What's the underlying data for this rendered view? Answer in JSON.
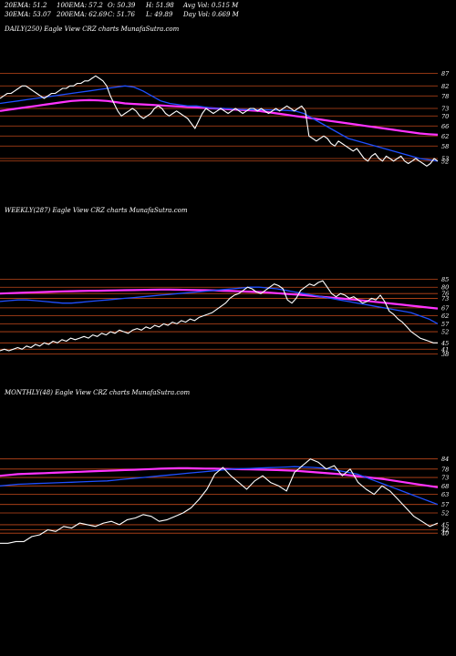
{
  "header": {
    "row1": [
      "20EMA: 51.2",
      "100EMA: 57.2",
      "O: 50.39",
      "H: 51.98",
      "Avg Vol: 0.515 M"
    ],
    "row2": [
      "30EMA: 53.07",
      "200EMA: 62.69",
      "C: 51.76",
      "L: 49.89",
      "Day Vol: 0.669 M"
    ]
  },
  "colors": {
    "price": "#ffffff",
    "ema_fast": "#1f4fff",
    "ema_slow": "#ff33ff",
    "hlines": "#c0481a"
  },
  "chart_data": [
    {
      "type": "line",
      "title": "DAILY(250) Eagle  View  CRZ charts MunafaSutra.com",
      "yticks": [
        87,
        82,
        78,
        73,
        70,
        66,
        62,
        58,
        53,
        52
      ],
      "ylim": [
        49,
        89
      ],
      "series": [
        {
          "values": [
            77,
            78,
            79,
            79,
            80,
            81,
            82,
            82,
            81,
            80,
            79,
            78,
            77,
            78,
            79,
            79,
            80,
            81,
            81,
            82,
            82,
            83,
            83,
            84,
            84,
            85,
            86,
            85,
            84,
            82,
            78,
            75,
            72,
            70,
            71,
            72,
            73,
            72,
            70,
            69,
            70,
            71,
            73,
            74,
            73,
            71,
            70,
            71,
            72,
            71,
            70,
            69,
            67,
            65,
            68,
            71,
            73,
            72,
            71,
            72,
            73,
            72,
            71,
            72,
            73,
            72,
            71,
            72,
            73,
            73,
            72,
            73,
            72,
            71,
            72,
            73,
            72,
            73,
            74,
            73,
            72,
            73,
            74,
            72,
            62,
            61,
            60,
            61,
            62,
            61,
            59,
            58,
            60,
            59,
            58,
            57,
            56,
            57,
            55,
            53,
            52,
            54,
            55,
            53,
            52,
            54,
            53,
            52,
            53,
            54,
            52,
            51,
            52,
            53,
            52,
            51,
            50,
            51,
            53,
            52
          ]
        },
        {
          "values": [
            75,
            75.5,
            76,
            76.5,
            77,
            77.5,
            78,
            78.5,
            79,
            79.5,
            80,
            80.5,
            81,
            81.5,
            82,
            81.5,
            80,
            78,
            76,
            75,
            74.5,
            74,
            74,
            73.5,
            73,
            73,
            72.8,
            72.6,
            72.5,
            72.5,
            72.4,
            72.3,
            72.2,
            72,
            71,
            69,
            67,
            65,
            63,
            61,
            60,
            59,
            58,
            57,
            56,
            55,
            54,
            53,
            52.5,
            52
          ]
        },
        {
          "values": [
            72,
            72.5,
            73,
            73.5,
            74,
            74.5,
            75,
            75.5,
            76,
            76.2,
            76.3,
            76.2,
            76,
            75.5,
            75,
            74.8,
            74.6,
            74.4,
            74.2,
            74,
            73.8,
            73.6,
            73.4,
            73.2,
            73,
            72.8,
            72.6,
            72.4,
            72.2,
            72,
            71.5,
            71,
            70.5,
            70,
            69.5,
            69,
            68.5,
            68,
            67.5,
            67,
            66.5,
            66,
            65.5,
            65,
            64.5,
            64,
            63.5,
            63,
            62.7,
            62.5
          ]
        }
      ]
    },
    {
      "type": "line",
      "title": "WEEKLY(287) Eagle  View  CRZ charts MunafaSutra.com",
      "yticks": [
        85,
        80,
        76,
        73,
        67,
        62,
        57,
        52,
        45,
        41,
        38
      ],
      "ylim": [
        36,
        87
      ],
      "series": [
        {
          "values": [
            40,
            41,
            40,
            41,
            42,
            41,
            43,
            42,
            44,
            43,
            45,
            44,
            46,
            45,
            47,
            46,
            48,
            47,
            48,
            49,
            48,
            50,
            49,
            51,
            50,
            52,
            51,
            53,
            52,
            51,
            53,
            54,
            53,
            55,
            54,
            56,
            55,
            57,
            56,
            58,
            57,
            59,
            58,
            60,
            59,
            61,
            62,
            63,
            64,
            66,
            68,
            70,
            73,
            75,
            76,
            78,
            80,
            79,
            77,
            76,
            78,
            80,
            82,
            81,
            79,
            72,
            70,
            73,
            78,
            80,
            82,
            81,
            83,
            84,
            80,
            76,
            74,
            76,
            75,
            73,
            74,
            72,
            70,
            71,
            73,
            72,
            75,
            71,
            65,
            63,
            60,
            58,
            55,
            52,
            50,
            48,
            47,
            46,
            45,
            45
          ]
        },
        {
          "values": [
            71,
            71.5,
            72,
            72,
            71.5,
            71,
            70.5,
            70,
            70,
            70.5,
            71,
            71.5,
            72,
            72.5,
            73,
            73.5,
            74,
            74.5,
            75,
            75.5,
            76,
            76.5,
            77,
            77.5,
            78,
            78.5,
            79,
            79.5,
            80,
            80,
            79.5,
            79,
            78,
            77,
            76,
            75,
            74,
            73,
            72,
            71,
            70,
            69,
            68,
            67,
            66,
            65,
            64,
            62,
            60,
            57
          ]
        },
        {
          "values": [
            76,
            76.2,
            76.4,
            76.6,
            76.8,
            77,
            77.2,
            77.4,
            77.5,
            77.6,
            77.7,
            77.8,
            77.9,
            78,
            78.1,
            78.2,
            78.3,
            78.4,
            78.5,
            78.5,
            78.4,
            78.3,
            78.2,
            78.1,
            78,
            77.8,
            77.6,
            77.4,
            77.2,
            77,
            76.6,
            76.2,
            75.8,
            75.4,
            75,
            74.5,
            74,
            73.5,
            73,
            72.5,
            72,
            71.4,
            70.8,
            70.2,
            69.6,
            69,
            68.4,
            67.8,
            67.2,
            66.6
          ]
        }
      ]
    },
    {
      "type": "line",
      "title": "MONTHLY(48) Eagle  View  CRZ charts MunafaSutra.com",
      "yticks": [
        84,
        78,
        73,
        68,
        63,
        57,
        52,
        45,
        42,
        40
      ],
      "ylim": [
        32,
        86
      ],
      "series": [
        {
          "values": [
            34,
            34,
            35,
            35,
            38,
            39,
            42,
            41,
            44,
            43,
            46,
            45,
            44,
            46,
            47,
            45,
            48,
            49,
            51,
            50,
            47,
            48,
            50,
            52,
            55,
            60,
            66,
            75,
            79,
            74,
            70,
            66,
            71,
            74,
            70,
            68,
            65,
            76,
            80,
            84,
            82,
            78,
            80,
            74,
            78,
            70,
            66,
            63,
            68,
            65,
            60,
            55,
            50,
            47,
            44,
            46
          ]
        },
        {
          "values": [
            68,
            68.5,
            69,
            69.2,
            69.4,
            69.6,
            69.8,
            70,
            70.2,
            70.4,
            70.6,
            70.8,
            71,
            71.5,
            72,
            72.5,
            73,
            73.5,
            74,
            74.5,
            75,
            75.5,
            76,
            76.5,
            77,
            77.5,
            78,
            78.2,
            78.4,
            78.6,
            78.8,
            79,
            79.2,
            79.4,
            79.2,
            79,
            78.6,
            78,
            77,
            76,
            75,
            73,
            71,
            69,
            67,
            65,
            63,
            61,
            59,
            57
          ]
        },
        {
          "values": [
            74,
            74.5,
            75,
            75.2,
            75.4,
            75.6,
            75.8,
            76,
            76.2,
            76.4,
            76.6,
            76.8,
            77,
            77.2,
            77.4,
            77.6,
            77.8,
            78,
            78.2,
            78.4,
            78.5,
            78.5,
            78.4,
            78.3,
            78.2,
            78.1,
            78,
            77.9,
            77.8,
            77.7,
            77.6,
            77.4,
            77.2,
            77,
            76.6,
            76.2,
            75.8,
            75.4,
            75,
            74.4,
            73.8,
            73.2,
            72.6,
            72,
            71.2,
            70.4,
            69.6,
            68.8,
            68,
            67.2
          ]
        }
      ]
    }
  ]
}
